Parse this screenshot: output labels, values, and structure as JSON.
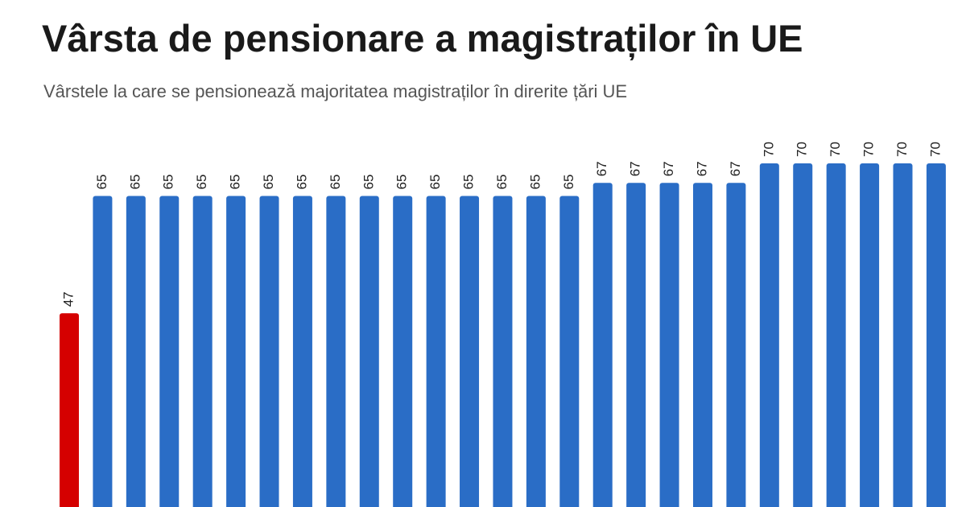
{
  "chart_data": {
    "type": "bar",
    "title": "Vârsta de pensionare a magistraților în UE",
    "subtitle": "Vârstele la care se pensionează majoritatea magistraților în direrite țări UE",
    "values": [
      47,
      65,
      65,
      65,
      65,
      65,
      65,
      65,
      65,
      65,
      65,
      65,
      65,
      65,
      65,
      65,
      67,
      67,
      67,
      67,
      67,
      70,
      70,
      70,
      70,
      70,
      70
    ],
    "colors": [
      "#d50000",
      "#2a6dc6",
      "#2a6dc6",
      "#2a6dc6",
      "#2a6dc6",
      "#2a6dc6",
      "#2a6dc6",
      "#2a6dc6",
      "#2a6dc6",
      "#2a6dc6",
      "#2a6dc6",
      "#2a6dc6",
      "#2a6dc6",
      "#2a6dc6",
      "#2a6dc6",
      "#2a6dc6",
      "#2a6dc6",
      "#2a6dc6",
      "#2a6dc6",
      "#2a6dc6",
      "#2a6dc6",
      "#2a6dc6",
      "#2a6dc6",
      "#2a6dc6",
      "#2a6dc6",
      "#2a6dc6",
      "#2a6dc6"
    ]
  }
}
